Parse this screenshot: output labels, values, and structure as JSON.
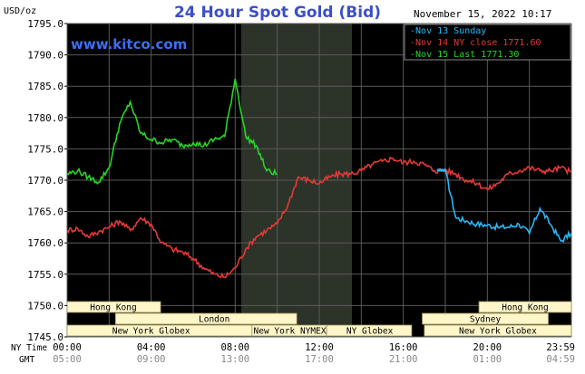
{
  "chart_data": {
    "type": "line",
    "title": "24 Hour Spot Gold (Bid)",
    "y_unit": "USD/oz",
    "date_stamp": "November 15, 2022 10:17",
    "watermark": "www.kitco.com",
    "ylim": [
      1745,
      1795
    ],
    "y_ticks": [
      "1795.0",
      "1790.0",
      "1785.0",
      "1780.0",
      "1775.0",
      "1770.0",
      "1765.0",
      "1760.0",
      "1755.0",
      "1750.0",
      "1745.0"
    ],
    "x_row_labels": [
      "NY Time",
      "GMT"
    ],
    "x_ticks_ny": [
      "00:00",
      "04:00",
      "08:00",
      "12:00",
      "16:00",
      "20:00",
      "23:59"
    ],
    "x_ticks_gmt": [
      "05:00",
      "09:00",
      "13:00",
      "17:00",
      "21:00",
      "01:00",
      "04:59"
    ],
    "grid": true,
    "legend_position": "top-right",
    "colors": {
      "background": "#000000",
      "grid": "#5a5a5a",
      "title": "#3b4fc8",
      "watermark": "#3b6ff0",
      "session_band": "#fff6c9",
      "shade": "#2c3329"
    },
    "sessions": [
      {
        "label": "Hong Kong",
        "row": 1
      },
      {
        "label": "London",
        "row": 2
      },
      {
        "label": "New York Globex",
        "row": 3
      },
      {
        "label": "New York NYMEX",
        "row": 3
      },
      {
        "label": "NY Globex",
        "row": 3
      },
      {
        "label": "Hong Kong",
        "row": 1
      },
      {
        "label": "Sydney",
        "row": 2
      },
      {
        "label": "New York Globex",
        "row": 3
      }
    ],
    "series": [
      {
        "name": "Nov 13 Sunday",
        "color": "#29b6f6",
        "x_hours": [
          18,
          18.5,
          19,
          19.5,
          20,
          20.5,
          21,
          21.5,
          22,
          22.5,
          23,
          23.5,
          23.98
        ],
        "y": [
          1771.6,
          1764,
          1763.5,
          1763,
          1762.8,
          1762.5,
          1762.5,
          1763,
          1761.5,
          1765.5,
          1763,
          1760.3,
          1761.5
        ]
      },
      {
        "name": "Nov 14 NY close",
        "color": "#e53935",
        "value": "1771.60",
        "x_hours": [
          0,
          0.5,
          1,
          1.5,
          2,
          2.5,
          3,
          3.5,
          4,
          4.5,
          5,
          5.5,
          6,
          6.5,
          7,
          7.5,
          8,
          8.5,
          9,
          9.5,
          10,
          10.5,
          11,
          11.5,
          12,
          12.5,
          13,
          13.5,
          14,
          14.5,
          15,
          15.5,
          16,
          16.5,
          17,
          17.5,
          18,
          18.5,
          19,
          19.5,
          20,
          20.5,
          21,
          21.5,
          22,
          22.5,
          23,
          23.5,
          23.98
        ],
        "y": [
          1762,
          1762.3,
          1761,
          1761.8,
          1762.5,
          1763.5,
          1762,
          1764,
          1763,
          1760,
          1759,
          1758.5,
          1757.5,
          1756,
          1755,
          1754.5,
          1756,
          1759,
          1761,
          1762,
          1763,
          1766,
          1770.5,
          1770,
          1769.5,
          1770.5,
          1771,
          1771,
          1771.5,
          1772.5,
          1773,
          1773.5,
          1772.8,
          1773,
          1772.5,
          1771.5,
          1771.6,
          1771,
          1770,
          1769.5,
          1768.5,
          1769.5,
          1771,
          1771.5,
          1772,
          1771.5,
          1771.5,
          1772,
          1771.3
        ]
      },
      {
        "name": "Nov 15 Last",
        "color": "#27d627",
        "value": "1771.30",
        "x_hours": [
          0,
          0.5,
          1,
          1.5,
          2,
          2.5,
          3,
          3.5,
          4,
          4.5,
          5,
          5.5,
          6,
          6.5,
          7,
          7.5,
          8,
          8.5,
          9,
          9.5,
          10
        ],
        "y": [
          1771,
          1771.5,
          1770.5,
          1769.7,
          1772,
          1779,
          1782.5,
          1777.5,
          1776.5,
          1776,
          1776.5,
          1775.5,
          1776,
          1775.5,
          1776.5,
          1777,
          1786.2,
          1777,
          1775.5,
          1771.5,
          1771
        ]
      }
    ]
  }
}
